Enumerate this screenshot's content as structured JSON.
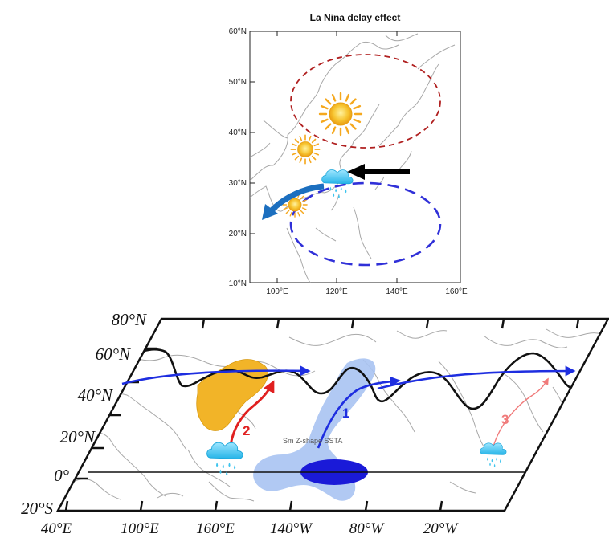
{
  "top_map": {
    "title": "La Nina delay effect",
    "lat_labels": [
      "60°N",
      "50°N",
      "40°N",
      "30°N",
      "20°N",
      "10°N"
    ],
    "lon_labels": [
      "100°E",
      "120°E",
      "140°E",
      "160°E"
    ]
  },
  "bottom_map": {
    "lat_labels": [
      "80°N",
      "60°N",
      "40°N",
      "20°N",
      "0°",
      "20°S"
    ],
    "lon_labels": [
      "40°E",
      "100°E",
      "160°E",
      "140°W",
      "80°W",
      "20°W"
    ],
    "path_numbers": [
      "1",
      "2",
      "3"
    ],
    "annotation": "Sm Z-shape SSTA",
    "colors": {
      "wave": "#111111",
      "jet_arrow": "#1e2ee0",
      "path_2": "#e02020",
      "path_3": "#f07a7a",
      "ssta_light": "#a9c3f2",
      "ssta_dark": "#1a1ad8",
      "drought_region": "#f2b428"
    }
  },
  "colors": {
    "warm_ellipse": "#b02020",
    "cool_ellipse": "#3030d8",
    "flow_arrow": "#1c6fbf",
    "sun": "#f5b82a",
    "rain_cloud": "#3ec4ee"
  },
  "icons": [
    "sun-icon",
    "rain-cloud-icon"
  ]
}
